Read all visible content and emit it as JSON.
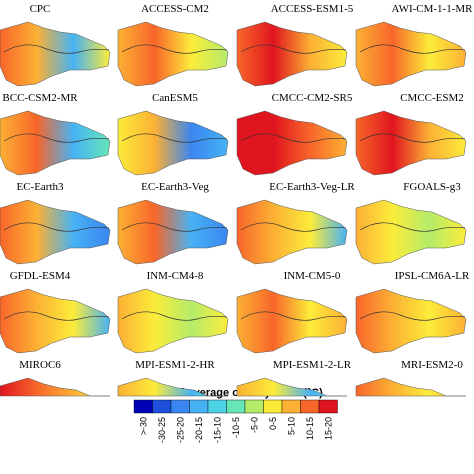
{
  "panels": [
    "CPC",
    "ACCESS-CM2",
    "ACCESS-ESM1-5",
    "AWI-CM-1-1-MR",
    "BCC-CSM2-MR",
    "CanESM5",
    "CMCC-CM2-SR5",
    "CMCC-ESM2",
    "EC-Earth3",
    "EC-Earth3-Veg",
    "EC-Earth3-Veg-LR",
    "FGOALS-g3",
    "GFDL-ESM4",
    "INM-CM4-8",
    "INM-CM5-0",
    "IPSL-CM6A-LR",
    "MIROC6",
    "MPI-ESM1-2-HR",
    "MPI-ESM1-2-LR",
    "MRI-ESM2-0"
  ],
  "legend": {
    "title": "Annual average of daily Tmin (°C)",
    "labels": [
      ">-30",
      "-30-25",
      "-25-20",
      "-20-15",
      "-15-10",
      "-10-5",
      "-5-0",
      "0-5",
      "5-10",
      "10-15",
      "15-20"
    ],
    "colors": [
      "#0000b4",
      "#1e50dc",
      "#3a86f0",
      "#46b2f4",
      "#4ed2e6",
      "#66e6b6",
      "#b4ec6a",
      "#fcec3a",
      "#fcb034",
      "#f8662a",
      "#e0141e"
    ]
  }
}
